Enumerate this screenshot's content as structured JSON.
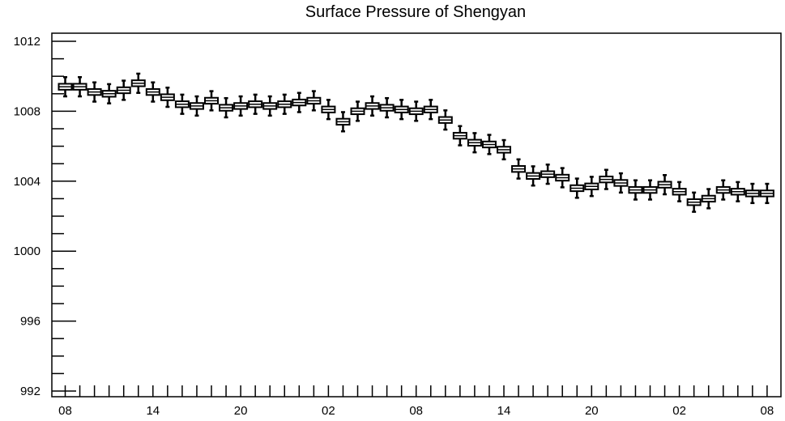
{
  "chart_data": {
    "type": "boxplot",
    "title": "Surface Pressure of Shengyan",
    "xlabel": "",
    "ylabel": "",
    "ylim": [
      992,
      1013
    ],
    "y_ticks": [
      992,
      996,
      1000,
      1004,
      1008,
      1012
    ],
    "y_tick_labels": [
      "992",
      "996",
      "1000",
      "1004",
      "1008",
      "1012"
    ],
    "x_tick_labels": [
      {
        "index": 0,
        "label": "08"
      },
      {
        "index": 6,
        "label": "14"
      },
      {
        "index": 12,
        "label": "20"
      },
      {
        "index": 18,
        "label": "02"
      },
      {
        "index": 24,
        "label": "08"
      },
      {
        "index": 30,
        "label": "14"
      },
      {
        "index": 36,
        "label": "20"
      },
      {
        "index": 42,
        "label": "02"
      },
      {
        "index": 48,
        "label": "08"
      }
    ],
    "grid": false,
    "medians": [
      1009.4,
      1009.4,
      1009.1,
      1009.0,
      1009.2,
      1009.6,
      1009.1,
      1008.8,
      1008.4,
      1008.3,
      1008.6,
      1008.2,
      1008.3,
      1008.4,
      1008.3,
      1008.4,
      1008.5,
      1008.6,
      1008.1,
      1007.4,
      1008.0,
      1008.3,
      1008.2,
      1008.1,
      1008.0,
      1008.1,
      1007.5,
      1006.6,
      1006.2,
      1006.1,
      1005.8,
      1004.7,
      1004.3,
      1004.4,
      1004.2,
      1003.6,
      1003.7,
      1004.1,
      1003.9,
      1003.5,
      1003.5,
      1003.8,
      1003.4,
      1002.8,
      1003.0,
      1003.5,
      1003.4,
      1003.3,
      1003.3
    ]
  }
}
